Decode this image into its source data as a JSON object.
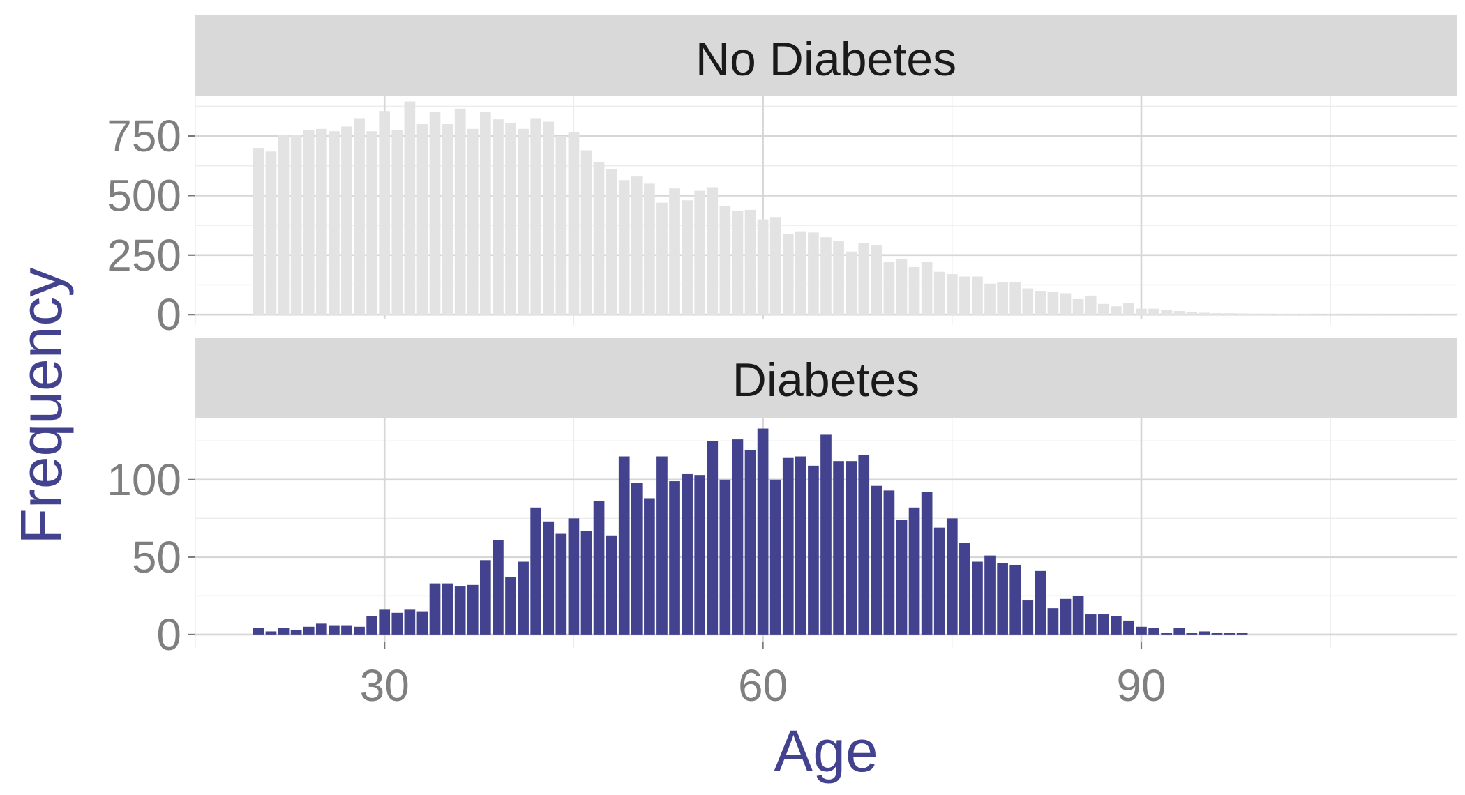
{
  "chart_data": {
    "type": "bar",
    "layout": "facet-rows",
    "xlabel": "Age",
    "ylabel": "Frequency",
    "xlim": [
      15,
      115
    ],
    "xticks": [
      30,
      60,
      90
    ],
    "grid": true,
    "panels": [
      {
        "title": "No Diabetes",
        "color": "#e3e3e3",
        "ylim": [
          -20,
          920
        ],
        "yticks": [
          0,
          250,
          500,
          750
        ],
        "x": [
          20,
          21,
          22,
          23,
          24,
          25,
          26,
          27,
          28,
          29,
          30,
          31,
          32,
          33,
          34,
          35,
          36,
          37,
          38,
          39,
          40,
          41,
          42,
          43,
          44,
          45,
          46,
          47,
          48,
          49,
          50,
          51,
          52,
          53,
          54,
          55,
          56,
          57,
          58,
          59,
          60,
          61,
          62,
          63,
          64,
          65,
          66,
          67,
          68,
          69,
          70,
          71,
          72,
          73,
          74,
          75,
          76,
          77,
          78,
          79,
          80,
          81,
          82,
          83,
          84,
          85,
          86,
          87,
          88,
          89,
          90,
          91,
          92,
          93,
          94,
          95,
          96,
          97,
          98,
          99,
          100,
          101,
          102,
          103,
          104,
          105,
          106,
          107,
          108,
          109,
          110,
          111,
          112,
          113,
          114,
          115
        ],
        "values": [
          700,
          685,
          755,
          755,
          775,
          780,
          770,
          790,
          825,
          770,
          855,
          775,
          895,
          800,
          850,
          800,
          865,
          780,
          850,
          820,
          805,
          780,
          825,
          810,
          750,
          765,
          690,
          640,
          610,
          565,
          580,
          550,
          470,
          530,
          480,
          520,
          535,
          455,
          435,
          440,
          400,
          410,
          340,
          350,
          345,
          325,
          310,
          265,
          300,
          290,
          220,
          235,
          200,
          220,
          180,
          170,
          160,
          160,
          130,
          135,
          135,
          110,
          100,
          95,
          90,
          65,
          80,
          45,
          35,
          50,
          25,
          25,
          20,
          15,
          10,
          8,
          6,
          6,
          5,
          4,
          4,
          3,
          3,
          3,
          2,
          2,
          2,
          2,
          2,
          2,
          1,
          1,
          1,
          1,
          1,
          1
        ]
      },
      {
        "title": "Diabetes",
        "color": "#43428e",
        "ylim": [
          -5,
          140
        ],
        "yticks": [
          0,
          50,
          100
        ],
        "x": [
          20,
          21,
          22,
          23,
          24,
          25,
          26,
          27,
          28,
          29,
          30,
          31,
          32,
          33,
          34,
          35,
          36,
          37,
          38,
          39,
          40,
          41,
          42,
          43,
          44,
          45,
          46,
          47,
          48,
          49,
          50,
          51,
          52,
          53,
          54,
          55,
          56,
          57,
          58,
          59,
          60,
          61,
          62,
          63,
          64,
          65,
          66,
          67,
          68,
          69,
          70,
          71,
          72,
          73,
          74,
          75,
          76,
          77,
          78,
          79,
          80,
          81,
          82,
          83,
          84,
          85,
          86,
          87,
          88,
          89,
          90,
          91,
          92,
          93,
          94,
          95,
          96,
          97,
          98,
          99
        ],
        "values": [
          4,
          2,
          4,
          3,
          5,
          7,
          6,
          6,
          5,
          12,
          16,
          14,
          16,
          15,
          33,
          33,
          31,
          32,
          48,
          61,
          37,
          47,
          82,
          73,
          65,
          75,
          67,
          86,
          64,
          115,
          98,
          88,
          115,
          99,
          104,
          103,
          125,
          100,
          126,
          119,
          133,
          100,
          114,
          115,
          109,
          129,
          112,
          112,
          116,
          96,
          93,
          74,
          82,
          92,
          69,
          75,
          59,
          47,
          51,
          46,
          45,
          22,
          41,
          17,
          23,
          25,
          13,
          13,
          12,
          9,
          5,
          4,
          1,
          4,
          1,
          2,
          1,
          1,
          1,
          0
        ]
      }
    ]
  }
}
